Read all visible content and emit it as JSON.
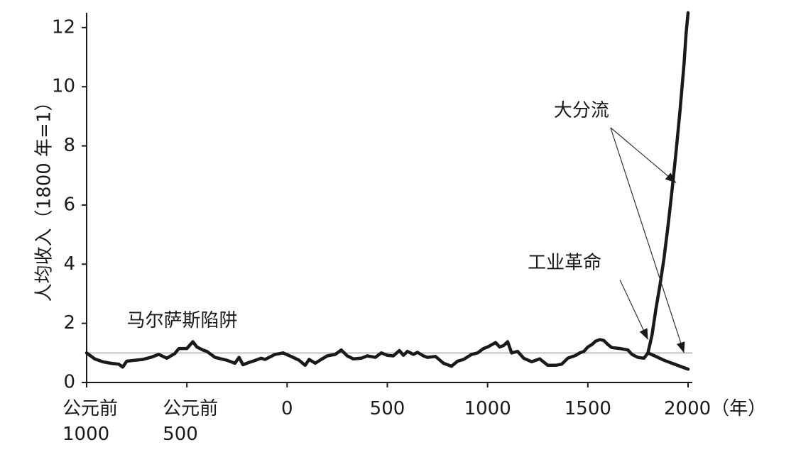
{
  "chart_data": {
    "type": "line",
    "title": "",
    "ylabel": "人均收入（1800 年=1）",
    "xlabel": "（年）",
    "xlim": [
      -1000,
      2000
    ],
    "ylim": [
      0,
      12.5
    ],
    "grid": false,
    "x_ticks": [
      {
        "value": -1000,
        "lines": [
          "公元前",
          "1000"
        ]
      },
      {
        "value": -500,
        "lines": [
          "公元前",
          "500"
        ]
      },
      {
        "value": 0,
        "lines": [
          "0"
        ]
      },
      {
        "value": 500,
        "lines": [
          "500"
        ]
      },
      {
        "value": 1000,
        "lines": [
          "1000"
        ]
      },
      {
        "value": 1500,
        "lines": [
          "1500"
        ]
      },
      {
        "value": 2000,
        "lines": [
          "2000（年）"
        ]
      }
    ],
    "y_ticks": [
      {
        "value": 0,
        "label": "0"
      },
      {
        "value": 2,
        "label": "2"
      },
      {
        "value": 4,
        "label": "4"
      },
      {
        "value": 6,
        "label": "6"
      },
      {
        "value": 8,
        "label": "8"
      },
      {
        "value": 10,
        "label": "10"
      },
      {
        "value": 12,
        "label": "12"
      }
    ],
    "reference_line": {
      "y": 1.0,
      "color": "#aaaaaa"
    },
    "series": [
      {
        "role": "malthusian",
        "color": "#1a1a1a",
        "x": [
          -1000,
          -960,
          -920,
          -880,
          -840,
          -820,
          -800,
          -760,
          -720,
          -680,
          -640,
          -600,
          -560,
          -540,
          -500,
          -470,
          -450,
          -420,
          -400,
          -360,
          -330,
          -300,
          -260,
          -240,
          -220,
          -190,
          -170,
          -130,
          -110,
          -60,
          -20,
          20,
          60,
          90,
          110,
          140,
          170,
          200,
          240,
          270,
          300,
          330,
          370,
          400,
          440,
          470,
          500,
          530,
          560,
          580,
          600,
          630,
          650,
          680,
          700,
          740,
          780,
          820,
          850,
          880,
          920,
          950,
          980,
          1000,
          1040,
          1060,
          1080,
          1100,
          1120,
          1150,
          1180,
          1220,
          1260,
          1300,
          1340,
          1370,
          1400,
          1440,
          1460,
          1480,
          1500,
          1520,
          1540,
          1560,
          1580,
          1600,
          1620,
          1660,
          1700,
          1720,
          1750,
          1780,
          1800
        ],
        "y": [
          1.0,
          0.8,
          0.7,
          0.65,
          0.62,
          0.52,
          0.72,
          0.75,
          0.78,
          0.85,
          0.95,
          0.82,
          0.98,
          1.15,
          1.15,
          1.38,
          1.2,
          1.1,
          1.05,
          0.85,
          0.8,
          0.75,
          0.65,
          0.85,
          0.6,
          0.68,
          0.72,
          0.82,
          0.78,
          0.95,
          1.0,
          0.88,
          0.75,
          0.58,
          0.78,
          0.65,
          0.78,
          0.9,
          0.95,
          1.1,
          0.9,
          0.8,
          0.82,
          0.9,
          0.85,
          1.0,
          0.92,
          0.9,
          1.08,
          0.92,
          1.05,
          0.95,
          1.02,
          0.9,
          0.85,
          0.88,
          0.65,
          0.55,
          0.72,
          0.78,
          0.95,
          1.0,
          1.15,
          1.2,
          1.35,
          1.2,
          1.25,
          1.38,
          1.0,
          1.05,
          0.82,
          0.7,
          0.8,
          0.58,
          0.58,
          0.62,
          0.82,
          0.92,
          1.0,
          1.05,
          1.2,
          1.28,
          1.4,
          1.45,
          1.42,
          1.28,
          1.18,
          1.15,
          1.1,
          0.95,
          0.85,
          0.82,
          1.0
        ]
      },
      {
        "role": "divergence-high",
        "color": "#1a1a1a",
        "x": [
          1800,
          1820,
          1840,
          1860,
          1880,
          1900,
          1920,
          1940,
          1960,
          1980,
          1990,
          2000
        ],
        "y": [
          1.0,
          1.6,
          2.5,
          3.3,
          4.2,
          5.3,
          6.5,
          7.8,
          9.2,
          10.8,
          11.8,
          12.5
        ]
      },
      {
        "role": "divergence-low",
        "color": "#1a1a1a",
        "x": [
          1800,
          1840,
          1880,
          1920,
          1960,
          2000
        ],
        "y": [
          1.0,
          0.88,
          0.75,
          0.65,
          0.55,
          0.45
        ]
      }
    ],
    "annotations": [
      {
        "name": "malthusian-trap",
        "text": "马尔萨斯陷阱",
        "x": -800,
        "y": 1.9
      },
      {
        "name": "industrial-revolution",
        "text": "工业革命",
        "x": 1200,
        "y": 3.85,
        "arrows": [
          {
            "x": 1800,
            "y": 1.45
          }
        ]
      },
      {
        "name": "great-divergence",
        "text": "大分流",
        "x": 1330,
        "y": 9.0,
        "arrows": [
          {
            "x": 1940,
            "y": 6.75
          },
          {
            "x": 1980,
            "y": 1.0
          }
        ]
      }
    ]
  }
}
